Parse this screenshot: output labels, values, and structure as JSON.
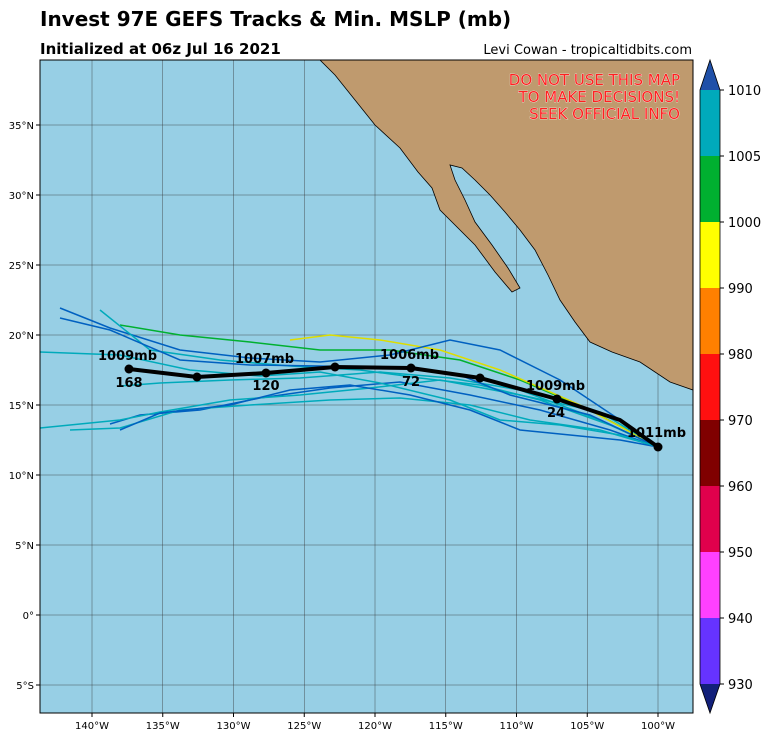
{
  "header": {
    "title": "Invest 97E GEFS Tracks & Min. MSLP (mb)",
    "subtitle": "Initialized at 06z Jul 16 2021",
    "credit": "Levi Cowan - tropicaltidbits.com"
  },
  "map": {
    "warning": [
      "DO NOT USE THIS MAP",
      "TO MAKE DECISIONS!",
      "SEEK OFFICIAL INFO"
    ],
    "lat_ticks": [
      {
        "value": 35,
        "label": "35°N"
      },
      {
        "value": 30,
        "label": "30°N"
      },
      {
        "value": 25,
        "label": "25°N"
      },
      {
        "value": 20,
        "label": "20°N"
      },
      {
        "value": 15,
        "label": "15°N"
      },
      {
        "value": 10,
        "label": "10°N"
      },
      {
        "value": 5,
        "label": "5°N"
      },
      {
        "value": 0,
        "label": "0°"
      },
      {
        "value": -5,
        "label": "5°S"
      }
    ],
    "lon_ticks": [
      {
        "value": -140,
        "label": "140°W"
      },
      {
        "value": -135,
        "label": "135°W"
      },
      {
        "value": -130,
        "label": "130°W"
      },
      {
        "value": -125,
        "label": "125°W"
      },
      {
        "value": -120,
        "label": "120°W"
      },
      {
        "value": -115,
        "label": "115°W"
      },
      {
        "value": -110,
        "label": "110°W"
      },
      {
        "value": -105,
        "label": "105°W"
      },
      {
        "value": -100,
        "label": "100°W"
      }
    ],
    "track_labels": {
      "pressure": [
        "1011mb",
        "1009mb",
        "1006mb",
        "1007mb",
        "1009mb"
      ],
      "hour": [
        "24",
        "72",
        "120",
        "168"
      ]
    }
  },
  "colorbar": {
    "ticks": [
      1010,
      1005,
      1000,
      990,
      980,
      970,
      960,
      950,
      940,
      930
    ],
    "colors": [
      "#00aabb",
      "#00b030",
      "#ffff00",
      "#ff8000",
      "#ff1010",
      "#800000",
      "#e0004c",
      "#ff40ff",
      "#6633ff"
    ],
    "end_colors": [
      "#2050a8",
      "#12207a"
    ]
  }
}
